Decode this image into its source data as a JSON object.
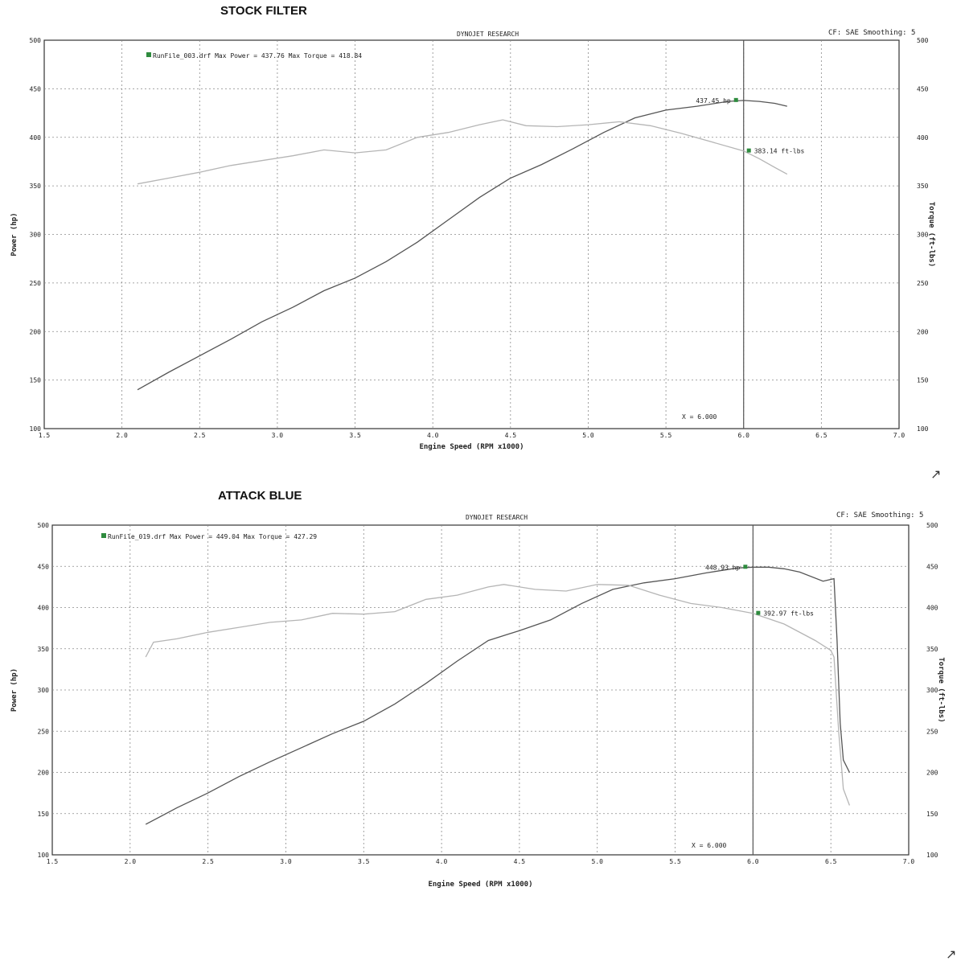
{
  "charts": [
    {
      "panel_title": "STOCK FILTER",
      "header": "DYNOJET RESEARCH",
      "correction": "CF: SAE  Smoothing: 5",
      "legend_text": "RunFile_003.drf Max Power = 437.76    Max Torque = 418.84",
      "xlabel": "Engine Speed (RPM x1000)",
      "ylabel_left": "Power (hp)",
      "ylabel_right": "Torque (ft-lbs)",
      "cursor_label": "X = 6.000",
      "power_annotation": "437.45 hp",
      "torque_annotation": "383.14 ft-lbs"
    },
    {
      "panel_title": "ATTACK BLUE",
      "header": "DYNOJET RESEARCH",
      "correction": "CF: SAE  Smoothing: 5",
      "legend_text": "RunFile_019.drf Max Power = 449.04    Max Torque = 427.29",
      "xlabel": "Engine Speed (RPM x1000)",
      "ylabel_left": "Power (hp)",
      "ylabel_right": "Torque (ft-lbs)",
      "cursor_label": "X = 6.000",
      "power_annotation": "448.93 hp",
      "torque_annotation": "392.97 ft-lbs"
    }
  ],
  "chart_data": [
    {
      "type": "line",
      "title": "STOCK FILTER",
      "xlabel": "Engine Speed (RPM x1000)",
      "ylabel": "Power (hp)",
      "y2label": "Torque (ft-lbs)",
      "xlim": [
        1.5,
        7.0
      ],
      "ylim": [
        100,
        500
      ],
      "x_ticks": [
        "1.5",
        "2.0",
        "2.5",
        "3.0",
        "3.5",
        "4.0",
        "4.5",
        "5.0",
        "5.5",
        "6.0",
        "6.5",
        "7.0"
      ],
      "y_ticks": [
        "100",
        "150",
        "200",
        "250",
        "300",
        "350",
        "400",
        "450",
        "500"
      ],
      "grid": true,
      "cursor_x": 6.0,
      "series": [
        {
          "name": "Power",
          "color": "#555555",
          "x": [
            2.1,
            2.3,
            2.5,
            2.7,
            2.9,
            3.1,
            3.3,
            3.5,
            3.7,
            3.9,
            4.1,
            4.3,
            4.5,
            4.7,
            4.9,
            5.1,
            5.3,
            5.5,
            5.7,
            5.9,
            6.0,
            6.1,
            6.2,
            6.28
          ],
          "y": [
            140,
            158,
            175,
            192,
            210,
            225,
            242,
            255,
            272,
            292,
            315,
            338,
            358,
            372,
            388,
            405,
            420,
            428,
            432,
            437,
            438,
            437,
            435,
            432
          ]
        },
        {
          "name": "Torque",
          "color": "#b5b5b5",
          "x": [
            2.1,
            2.3,
            2.5,
            2.7,
            2.9,
            3.1,
            3.3,
            3.5,
            3.7,
            3.9,
            4.1,
            4.3,
            4.45,
            4.6,
            4.8,
            5.0,
            5.2,
            5.4,
            5.6,
            5.8,
            6.0,
            6.1,
            6.2,
            6.28
          ],
          "y": [
            352,
            358,
            364,
            371,
            376,
            381,
            387,
            384,
            387,
            400,
            405,
            413,
            418,
            412,
            411,
            413,
            416,
            412,
            404,
            395,
            386,
            378,
            369,
            362
          ]
        }
      ]
    },
    {
      "type": "line",
      "title": "ATTACK BLUE",
      "xlabel": "Engine Speed (RPM x1000)",
      "ylabel": "Power (hp)",
      "y2label": "Torque (ft-lbs)",
      "xlim": [
        1.5,
        7.0
      ],
      "ylim": [
        100,
        500
      ],
      "x_ticks": [
        "1.5",
        "2.0",
        "2.5",
        "3.0",
        "3.5",
        "4.0",
        "4.5",
        "5.0",
        "5.5",
        "6.0",
        "6.5",
        "7.0"
      ],
      "y_ticks": [
        "100",
        "150",
        "200",
        "250",
        "300",
        "350",
        "400",
        "450",
        "500"
      ],
      "grid": true,
      "cursor_x": 6.0,
      "series": [
        {
          "name": "Power",
          "color": "#555555",
          "x": [
            2.1,
            2.3,
            2.5,
            2.7,
            2.9,
            3.1,
            3.3,
            3.5,
            3.7,
            3.9,
            4.1,
            4.3,
            4.5,
            4.7,
            4.9,
            5.1,
            5.3,
            5.5,
            5.7,
            5.9,
            6.0,
            6.1,
            6.2,
            6.3,
            6.45,
            6.52,
            6.54,
            6.56,
            6.58,
            6.62
          ],
          "y": [
            137,
            157,
            175,
            195,
            213,
            230,
            247,
            262,
            283,
            308,
            335,
            360,
            372,
            385,
            405,
            422,
            430,
            435,
            442,
            448,
            449,
            449,
            447,
            443,
            432,
            435,
            360,
            260,
            215,
            200
          ]
        },
        {
          "name": "Torque",
          "color": "#b5b5b5",
          "x": [
            2.1,
            2.15,
            2.3,
            2.5,
            2.7,
            2.9,
            3.1,
            3.3,
            3.5,
            3.7,
            3.9,
            4.1,
            4.3,
            4.4,
            4.6,
            4.8,
            5.0,
            5.2,
            5.4,
            5.6,
            5.8,
            6.0,
            6.2,
            6.4,
            6.5,
            6.52,
            6.55,
            6.58,
            6.62
          ],
          "y": [
            340,
            358,
            362,
            370,
            376,
            382,
            385,
            393,
            392,
            395,
            410,
            415,
            425,
            428,
            422,
            420,
            428,
            427,
            415,
            405,
            400,
            393,
            380,
            360,
            348,
            340,
            250,
            180,
            160
          ]
        }
      ]
    }
  ]
}
